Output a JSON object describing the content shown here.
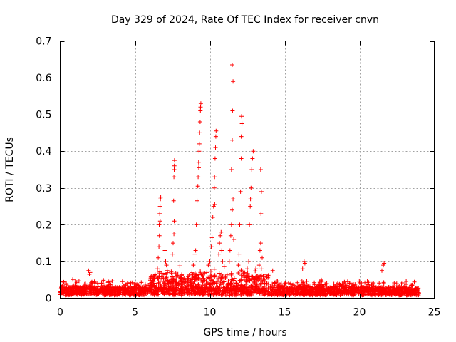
{
  "chart_data": {
    "type": "scatter",
    "title": "Day 329 of 2024, Rate Of TEC Index for receiver cnvn",
    "xlabel": "GPS time / hours",
    "ylabel": "ROTI / TECUs",
    "xlim": [
      0,
      25
    ],
    "ylim": [
      0,
      0.7
    ],
    "xticks": [
      0,
      5,
      10,
      15,
      20,
      25
    ],
    "yticks": [
      0,
      0.1,
      0.2,
      0.3,
      0.4,
      0.5,
      0.6,
      0.7
    ],
    "xtick_labels": [
      "0",
      "5",
      "10",
      "15",
      "20",
      "25"
    ],
    "ytick_labels": [
      "0",
      "0.1",
      "0.2",
      "0.3",
      "0.4",
      "0.5",
      "0.6",
      "0.7"
    ],
    "grid": true,
    "marker": "plus",
    "color": "#ff0000",
    "series": [
      {
        "name": "",
        "points": [
          [
            1.9,
            0.075
          ],
          [
            1.95,
            0.065
          ],
          [
            2.0,
            0.07
          ],
          [
            6.4,
            0.06
          ],
          [
            6.5,
            0.08
          ],
          [
            6.55,
            0.11
          ],
          [
            6.6,
            0.14
          ],
          [
            6.62,
            0.2
          ],
          [
            6.65,
            0.23
          ],
          [
            6.67,
            0.25
          ],
          [
            6.7,
            0.27
          ],
          [
            6.72,
            0.275
          ],
          [
            6.68,
            0.21
          ],
          [
            6.63,
            0.17
          ],
          [
            7.0,
            0.13
          ],
          [
            7.05,
            0.1
          ],
          [
            7.1,
            0.09
          ],
          [
            7.15,
            0.075
          ],
          [
            7.5,
            0.12
          ],
          [
            7.55,
            0.15
          ],
          [
            7.6,
            0.175
          ],
          [
            7.62,
            0.21
          ],
          [
            7.58,
            0.265
          ],
          [
            7.6,
            0.33
          ],
          [
            7.62,
            0.35
          ],
          [
            7.63,
            0.36
          ],
          [
            7.64,
            0.375
          ],
          [
            8.9,
            0.09
          ],
          [
            9.0,
            0.12
          ],
          [
            9.05,
            0.13
          ],
          [
            9.1,
            0.2
          ],
          [
            9.15,
            0.265
          ],
          [
            9.2,
            0.305
          ],
          [
            9.22,
            0.33
          ],
          [
            9.25,
            0.37
          ],
          [
            9.28,
            0.4
          ],
          [
            9.3,
            0.42
          ],
          [
            9.32,
            0.45
          ],
          [
            9.35,
            0.48
          ],
          [
            9.37,
            0.51
          ],
          [
            9.38,
            0.52
          ],
          [
            9.4,
            0.53
          ],
          [
            9.26,
            0.355
          ],
          [
            9.8,
            0.07
          ],
          [
            9.9,
            0.09
          ],
          [
            10.0,
            0.1
          ],
          [
            10.1,
            0.14
          ],
          [
            10.15,
            0.165
          ],
          [
            10.2,
            0.22
          ],
          [
            10.25,
            0.25
          ],
          [
            10.3,
            0.3
          ],
          [
            10.32,
            0.33
          ],
          [
            10.35,
            0.38
          ],
          [
            10.38,
            0.41
          ],
          [
            10.4,
            0.44
          ],
          [
            10.42,
            0.455
          ],
          [
            10.33,
            0.255
          ],
          [
            10.6,
            0.12
          ],
          [
            10.65,
            0.15
          ],
          [
            10.7,
            0.17
          ],
          [
            10.75,
            0.18
          ],
          [
            10.8,
            0.13
          ],
          [
            10.85,
            0.1
          ],
          [
            11.3,
            0.1
          ],
          [
            11.35,
            0.13
          ],
          [
            11.4,
            0.17
          ],
          [
            11.45,
            0.2
          ],
          [
            11.5,
            0.24
          ],
          [
            11.55,
            0.27
          ],
          [
            11.45,
            0.35
          ],
          [
            11.5,
            0.43
          ],
          [
            11.52,
            0.51
          ],
          [
            11.55,
            0.59
          ],
          [
            11.5,
            0.635
          ],
          [
            11.6,
            0.16
          ],
          [
            11.9,
            0.09
          ],
          [
            11.95,
            0.12
          ],
          [
            12.0,
            0.2
          ],
          [
            12.05,
            0.29
          ],
          [
            12.1,
            0.38
          ],
          [
            12.1,
            0.44
          ],
          [
            12.15,
            0.475
          ],
          [
            12.12,
            0.495
          ],
          [
            12.5,
            0.08
          ],
          [
            12.6,
            0.1
          ],
          [
            12.65,
            0.2
          ],
          [
            12.7,
            0.25
          ],
          [
            12.72,
            0.27
          ],
          [
            12.75,
            0.3
          ],
          [
            12.8,
            0.35
          ],
          [
            12.85,
            0.38
          ],
          [
            12.9,
            0.4
          ],
          [
            13.2,
            0.06
          ],
          [
            13.3,
            0.09
          ],
          [
            13.35,
            0.13
          ],
          [
            13.4,
            0.15
          ],
          [
            13.42,
            0.23
          ],
          [
            13.45,
            0.29
          ],
          [
            13.4,
            0.35
          ],
          [
            13.5,
            0.11
          ],
          [
            13.9,
            0.06
          ],
          [
            14.2,
            0.075
          ],
          [
            16.2,
            0.08
          ],
          [
            16.3,
            0.1
          ],
          [
            16.35,
            0.095
          ],
          [
            21.5,
            0.075
          ],
          [
            21.6,
            0.09
          ],
          [
            21.65,
            0.095
          ]
        ]
      }
    ]
  }
}
